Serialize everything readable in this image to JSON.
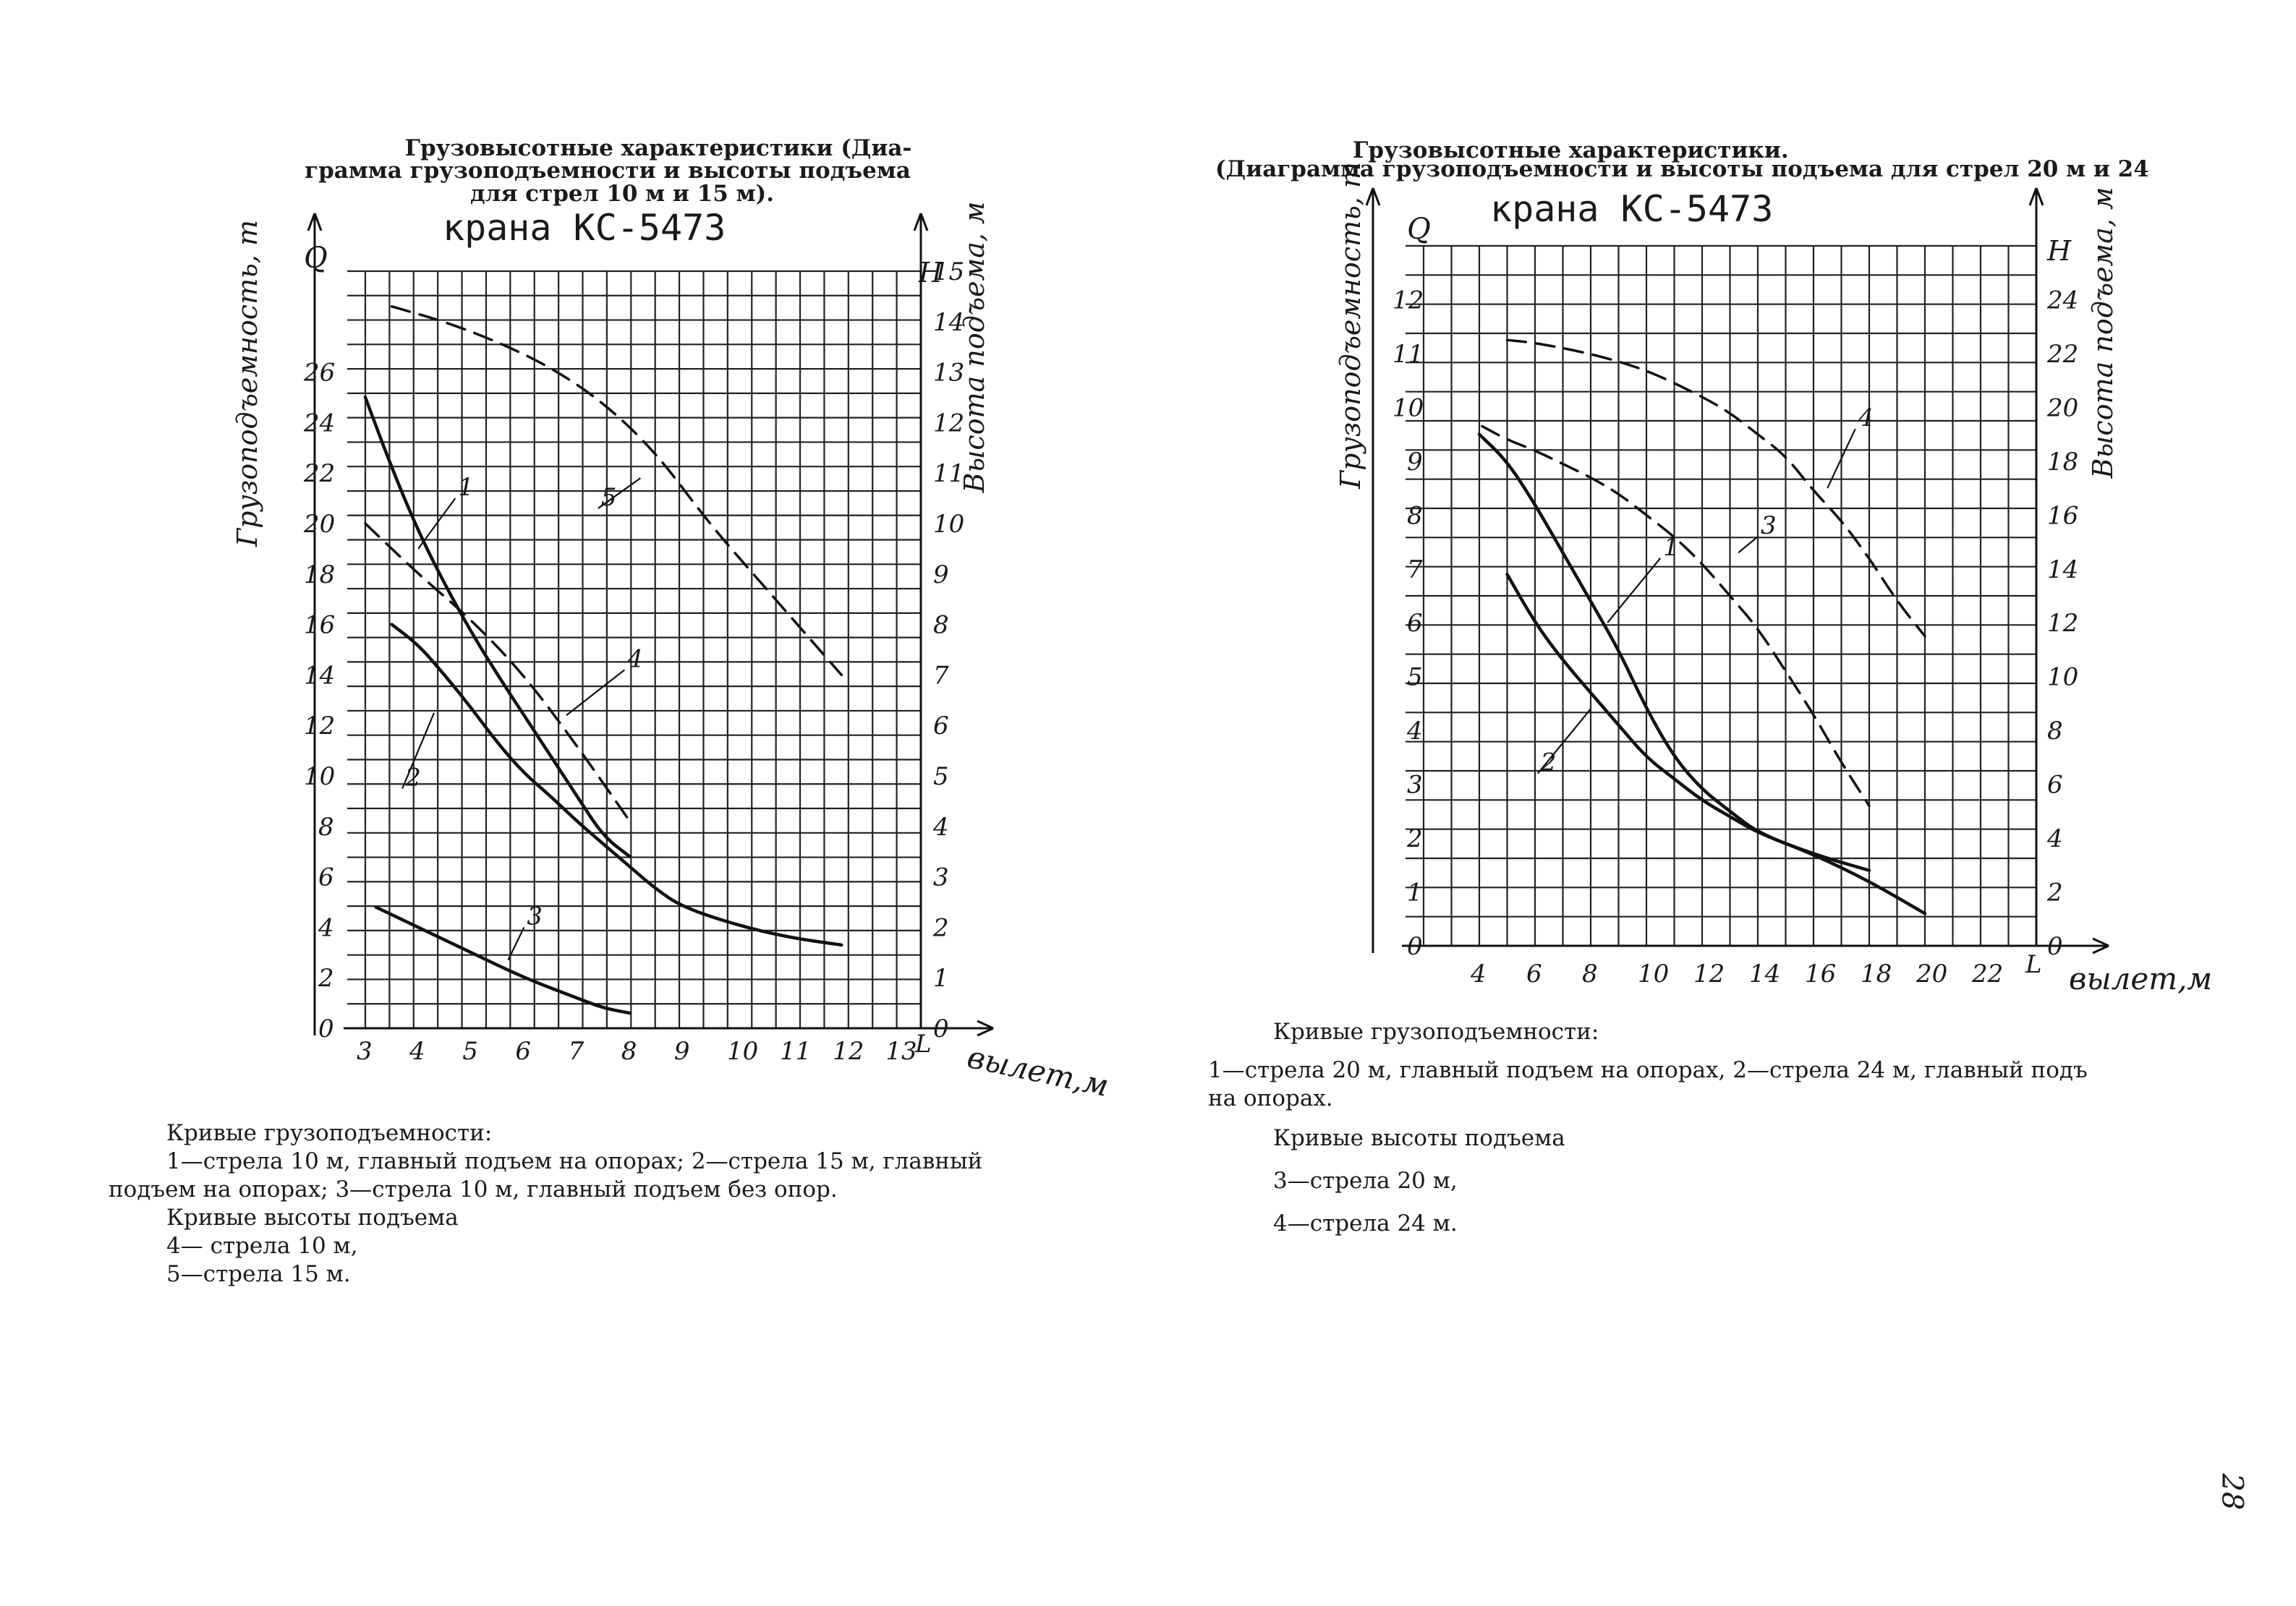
{
  "page_number": "28",
  "left": {
    "title_lines": [
      "Грузовысотные  характеристики (Диа-",
      "грамма грузоподъемности и высоты подъема",
      "для стрел 10 м и 15 м)."
    ],
    "crane": "крана КС-5473",
    "caption_lines": [
      "Кривые грузоподъемности:",
      "1—стрела 10 м, главный подъем  на опорах;  2—стрела 15 м,  главный",
      "подъем на опорах; 3—стрела 10 м, главный подъем без опор.",
      "Кривые высоты подъема",
      "4— стрела 10 м,",
      "5—стрела 15 м."
    ]
  },
  "right": {
    "title_lines": [
      "Грузовысотные характеристики.",
      "(Диаграмма грузоподъемности и высоты подъема  для  стрел 20 м и 24"
    ],
    "crane": "крана КС-5473",
    "caption_lines": [
      "Кривые грузоподъемности:",
      "1—стрела 20 м, главный подъем на опорах, 2—стрела 24 м, главный подъ",
      "на  опорах.",
      "Кривые высоты подъема",
      "3—стрела 20 м,",
      "4—стрела 24 м."
    ]
  },
  "chart_data": [
    {
      "type": "line",
      "title": "Грузовысотные характеристики (Диаграмма грузоподъемности и высоты подъема для стрел 10 м и 15 м). крана КС-5473",
      "xlabel": "вылет,м",
      "ylabel": "Грузоподъемность, т",
      "y2label": "Высота подъема, м",
      "x_axis_letter": "L",
      "y_axis_letter": "Q",
      "y2_axis_letter": "H",
      "xlim": [
        3,
        13.5
      ],
      "ylim": [
        0,
        30
      ],
      "y2lim": [
        0,
        15
      ],
      "x_ticks": [
        3,
        4,
        5,
        6,
        7,
        8,
        9,
        10,
        11,
        12,
        13
      ],
      "y_ticks": [
        0,
        2,
        4,
        6,
        8,
        10,
        12,
        14,
        16,
        18,
        20,
        22,
        24,
        26
      ],
      "y2_ticks": [
        0,
        1,
        2,
        3,
        4,
        5,
        6,
        7,
        8,
        9,
        10,
        11,
        12,
        13,
        14,
        15
      ],
      "grid": true,
      "series": [
        {
          "name": "1",
          "axis": "left",
          "style": "solid",
          "label_pos": [
            4.7,
            21
          ],
          "leader_to": [
            4.0,
            19.0
          ],
          "x": [
            3,
            3.5,
            4,
            4.5,
            5,
            5.5,
            6,
            6.5,
            7,
            7.5,
            8
          ],
          "y": [
            25,
            22.2,
            19.7,
            17.6,
            15.7,
            14,
            12.4,
            10.8,
            9.2,
            7.6,
            6.8
          ]
        },
        {
          "name": "2",
          "axis": "left",
          "style": "solid",
          "label_pos": [
            3.7,
            9.5
          ],
          "leader_to": [
            4.3,
            12.5
          ],
          "x": [
            3.5,
            4,
            4.5,
            5,
            5.5,
            6,
            6.5,
            7,
            7.5,
            8,
            8.5,
            9,
            10,
            11,
            12
          ],
          "y": [
            16,
            15.2,
            14,
            12.7,
            11.3,
            10.1,
            9.2,
            8.2,
            7.3,
            6.4,
            5.5,
            4.8,
            4.1,
            3.6,
            3.3
          ]
        },
        {
          "name": "3",
          "axis": "left",
          "style": "solid",
          "label_pos": [
            6.0,
            4.0
          ],
          "leader_to": [
            5.7,
            2.7
          ],
          "x": [
            3.2,
            4,
            5,
            6,
            7,
            7.5,
            8
          ],
          "y": [
            4.8,
            4.0,
            3.0,
            2.0,
            1.2,
            0.8,
            0.6
          ]
        },
        {
          "name": "4",
          "axis": "right",
          "style": "dashed",
          "label_pos": [
            7.9,
            7.1
          ],
          "leader_to": [
            6.8,
            6.2
          ],
          "x": [
            3,
            4,
            5,
            6,
            7,
            8
          ],
          "y": [
            10.0,
            9.0,
            8.1,
            7.0,
            5.6,
            4.1
          ]
        },
        {
          "name": "5",
          "axis": "right",
          "style": "dashed",
          "label_pos": [
            7.4,
            10.3
          ],
          "leader_to": [
            8.2,
            10.9
          ],
          "x": [
            3.5,
            4.5,
            5.5,
            6.5,
            7.5,
            8.5,
            9.5,
            10.5,
            11.5,
            12
          ],
          "y": [
            14.3,
            14.0,
            13.6,
            13.1,
            12.4,
            11.4,
            10.0,
            8.8,
            7.6,
            7.0
          ]
        }
      ]
    },
    {
      "type": "line",
      "title": "Грузовысотные характеристики. (Диаграмма грузоподъемности и высоты подъема для стрел 20 м и 24 крана КС-5473",
      "xlabel": "вылет,м",
      "ylabel": "Грузоподъемность, т",
      "y2label": "Высота подъема, м",
      "x_axis_letter": "L",
      "y_axis_letter": "Q",
      "y2_axis_letter": "H",
      "xlim": [
        2,
        24
      ],
      "ylim": [
        0,
        13
      ],
      "y2lim": [
        0,
        26
      ],
      "x_ticks": [
        4,
        6,
        8,
        10,
        12,
        14,
        16,
        18,
        20,
        22
      ],
      "y_ticks": [
        0,
        1,
        2,
        3,
        4,
        5,
        6,
        7,
        8,
        9,
        10,
        11,
        12
      ],
      "y2_ticks": [
        0,
        2,
        4,
        6,
        8,
        10,
        12,
        14,
        16,
        18,
        20,
        22,
        24
      ],
      "grid": true,
      "series": [
        {
          "name": "1",
          "axis": "left",
          "style": "solid",
          "label_pos": [
            10.5,
            7.2
          ],
          "leader_to": [
            8.6,
            6.0
          ],
          "x": [
            4,
            5,
            6,
            7,
            8,
            9,
            10,
            11,
            12,
            13,
            14,
            16,
            18
          ],
          "y": [
            9.5,
            9.0,
            8.2,
            7.3,
            6.4,
            5.5,
            4.4,
            3.5,
            2.9,
            2.5,
            2.1,
            1.7,
            1.4
          ]
        },
        {
          "name": "2",
          "axis": "left",
          "style": "solid",
          "label_pos": [
            6.1,
            3.2
          ],
          "leader_to": [
            8.0,
            4.4
          ],
          "x": [
            5,
            6,
            7,
            8,
            9,
            10,
            11,
            12,
            13,
            14,
            16,
            18,
            20
          ],
          "y": [
            6.9,
            6.0,
            5.3,
            4.7,
            4.1,
            3.5,
            3.1,
            2.7,
            2.4,
            2.1,
            1.7,
            1.2,
            0.6
          ]
        },
        {
          "name": "3",
          "axis": "right",
          "style": "dashed",
          "label_pos": [
            14.0,
            15.2
          ],
          "leader_to": [
            13.3,
            14.6
          ],
          "x": [
            4.1,
            5,
            6,
            7,
            8,
            9,
            10,
            11,
            12,
            13,
            14,
            15,
            16,
            17,
            18
          ],
          "y": [
            19.3,
            18.8,
            18.4,
            17.9,
            17.4,
            16.8,
            16.0,
            15.2,
            14.2,
            13.0,
            11.8,
            10.2,
            8.6,
            6.8,
            5.2
          ]
        },
        {
          "name": "4",
          "axis": "right",
          "style": "dashed",
          "label_pos": [
            17.5,
            19.2
          ],
          "leader_to": [
            16.5,
            17.0
          ],
          "x": [
            5,
            6,
            8,
            10,
            12,
            13,
            14,
            15,
            16,
            17,
            18,
            19,
            20
          ],
          "y": [
            22.5,
            22.4,
            22.0,
            21.4,
            20.4,
            19.8,
            19.0,
            18.2,
            16.9,
            15.8,
            14.4,
            12.8,
            11.5
          ]
        }
      ]
    }
  ]
}
